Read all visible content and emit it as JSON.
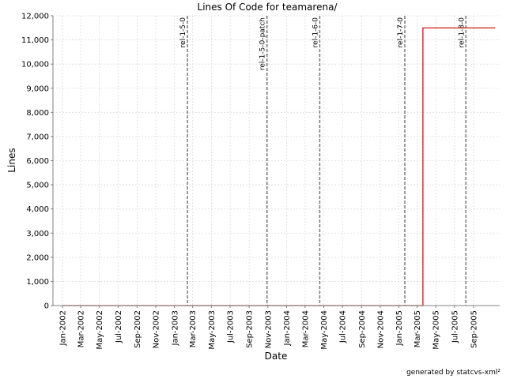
{
  "chart_data": {
    "type": "line",
    "title": "Lines Of Code for teamarena/",
    "xlabel": "Date",
    "ylabel": "Lines",
    "credit": "generated by statcvs-xml²",
    "xlim": [
      "2001-12-01",
      "2005-11-25"
    ],
    "ylim": [
      0,
      12000
    ],
    "grid": true,
    "y_ticks": [
      {
        "value": 0,
        "label": "0"
      },
      {
        "value": 1000,
        "label": "1,000"
      },
      {
        "value": 2000,
        "label": "2,000"
      },
      {
        "value": 3000,
        "label": "3,000"
      },
      {
        "value": 4000,
        "label": "4,000"
      },
      {
        "value": 5000,
        "label": "5,000"
      },
      {
        "value": 6000,
        "label": "6,000"
      },
      {
        "value": 7000,
        "label": "7,000"
      },
      {
        "value": 8000,
        "label": "8,000"
      },
      {
        "value": 9000,
        "label": "9,000"
      },
      {
        "value": 10000,
        "label": "10,000"
      },
      {
        "value": 11000,
        "label": "11,000"
      },
      {
        "value": 12000,
        "label": "12,000"
      }
    ],
    "x_ticks": [
      {
        "date": "2002-01-01",
        "label": "Jan-2002"
      },
      {
        "date": "2002-03-01",
        "label": "Mar-2002"
      },
      {
        "date": "2002-05-01",
        "label": "May-2002"
      },
      {
        "date": "2002-07-01",
        "label": "Jul-2002"
      },
      {
        "date": "2002-09-01",
        "label": "Sep-2002"
      },
      {
        "date": "2002-11-01",
        "label": "Nov-2002"
      },
      {
        "date": "2003-01-01",
        "label": "Jan-2003"
      },
      {
        "date": "2003-03-01",
        "label": "Mar-2003"
      },
      {
        "date": "2003-05-01",
        "label": "May-2003"
      },
      {
        "date": "2003-07-01",
        "label": "Jul-2003"
      },
      {
        "date": "2003-09-01",
        "label": "Sep-2003"
      },
      {
        "date": "2003-11-01",
        "label": "Nov-2003"
      },
      {
        "date": "2004-01-01",
        "label": "Jan-2004"
      },
      {
        "date": "2004-03-01",
        "label": "Mar-2004"
      },
      {
        "date": "2004-05-01",
        "label": "May-2004"
      },
      {
        "date": "2004-07-01",
        "label": "Jul-2004"
      },
      {
        "date": "2004-09-01",
        "label": "Sep-2004"
      },
      {
        "date": "2004-11-01",
        "label": "Nov-2004"
      },
      {
        "date": "2005-01-01",
        "label": "Jan-2005"
      },
      {
        "date": "2005-03-01",
        "label": "Mar-2005"
      },
      {
        "date": "2005-05-01",
        "label": "May-2005"
      },
      {
        "date": "2005-07-01",
        "label": "Jul-2005"
      },
      {
        "date": "2005-09-01",
        "label": "Sep-2005"
      }
    ],
    "markers": [
      {
        "label": "rel-1-5-0",
        "date": "2003-02-12"
      },
      {
        "label": "rel-1-5-0-patch",
        "date": "2003-10-29"
      },
      {
        "label": "rel-1-6-0",
        "date": "2004-04-18"
      },
      {
        "label": "rel-1-7-0",
        "date": "2005-01-20"
      },
      {
        "label": "rel-1-8-0",
        "date": "2005-08-07"
      }
    ],
    "series": [
      {
        "color": "#cc0000",
        "step": true,
        "points": [
          {
            "date": "2002-01-01",
            "value": 0
          },
          {
            "date": "2005-03-20",
            "value": 0
          },
          {
            "date": "2005-03-20",
            "value": 11500
          },
          {
            "date": "2005-11-10",
            "value": 11500
          }
        ]
      }
    ]
  }
}
